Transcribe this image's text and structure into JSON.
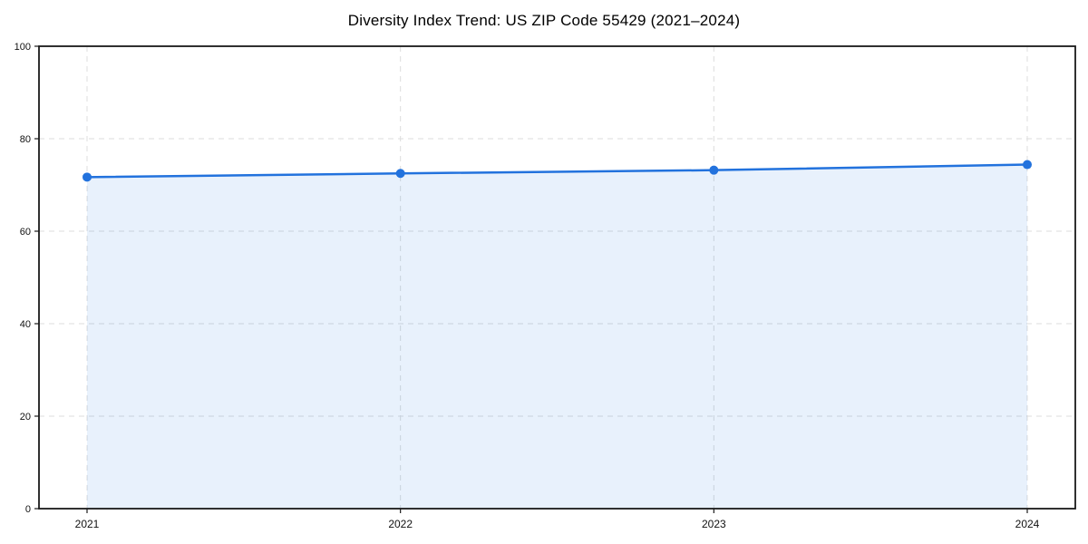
{
  "chart_data": {
    "type": "area",
    "title": "Diversity Index Trend: US ZIP Code 55429 (2021–2024)",
    "x": [
      "2021",
      "2022",
      "2023",
      "2024"
    ],
    "series": [
      {
        "name": "Diversity Index",
        "values": [
          71.7,
          72.5,
          73.2,
          74.4
        ]
      }
    ],
    "xlabel": "",
    "ylabel": "",
    "ylim": [
      0,
      100
    ],
    "yticks": [
      0,
      20,
      40,
      60,
      80,
      100
    ],
    "grid": true,
    "legend": "none",
    "marker": "circle",
    "colors": {
      "line": "#2272dd",
      "marker": "#2272dd",
      "fill": "#2272dd",
      "fill_opacity": 0.1,
      "grid": "#dcdcdc",
      "spine": "#1a1a1a",
      "tick_text": "#111111",
      "background": "#ffffff"
    }
  }
}
